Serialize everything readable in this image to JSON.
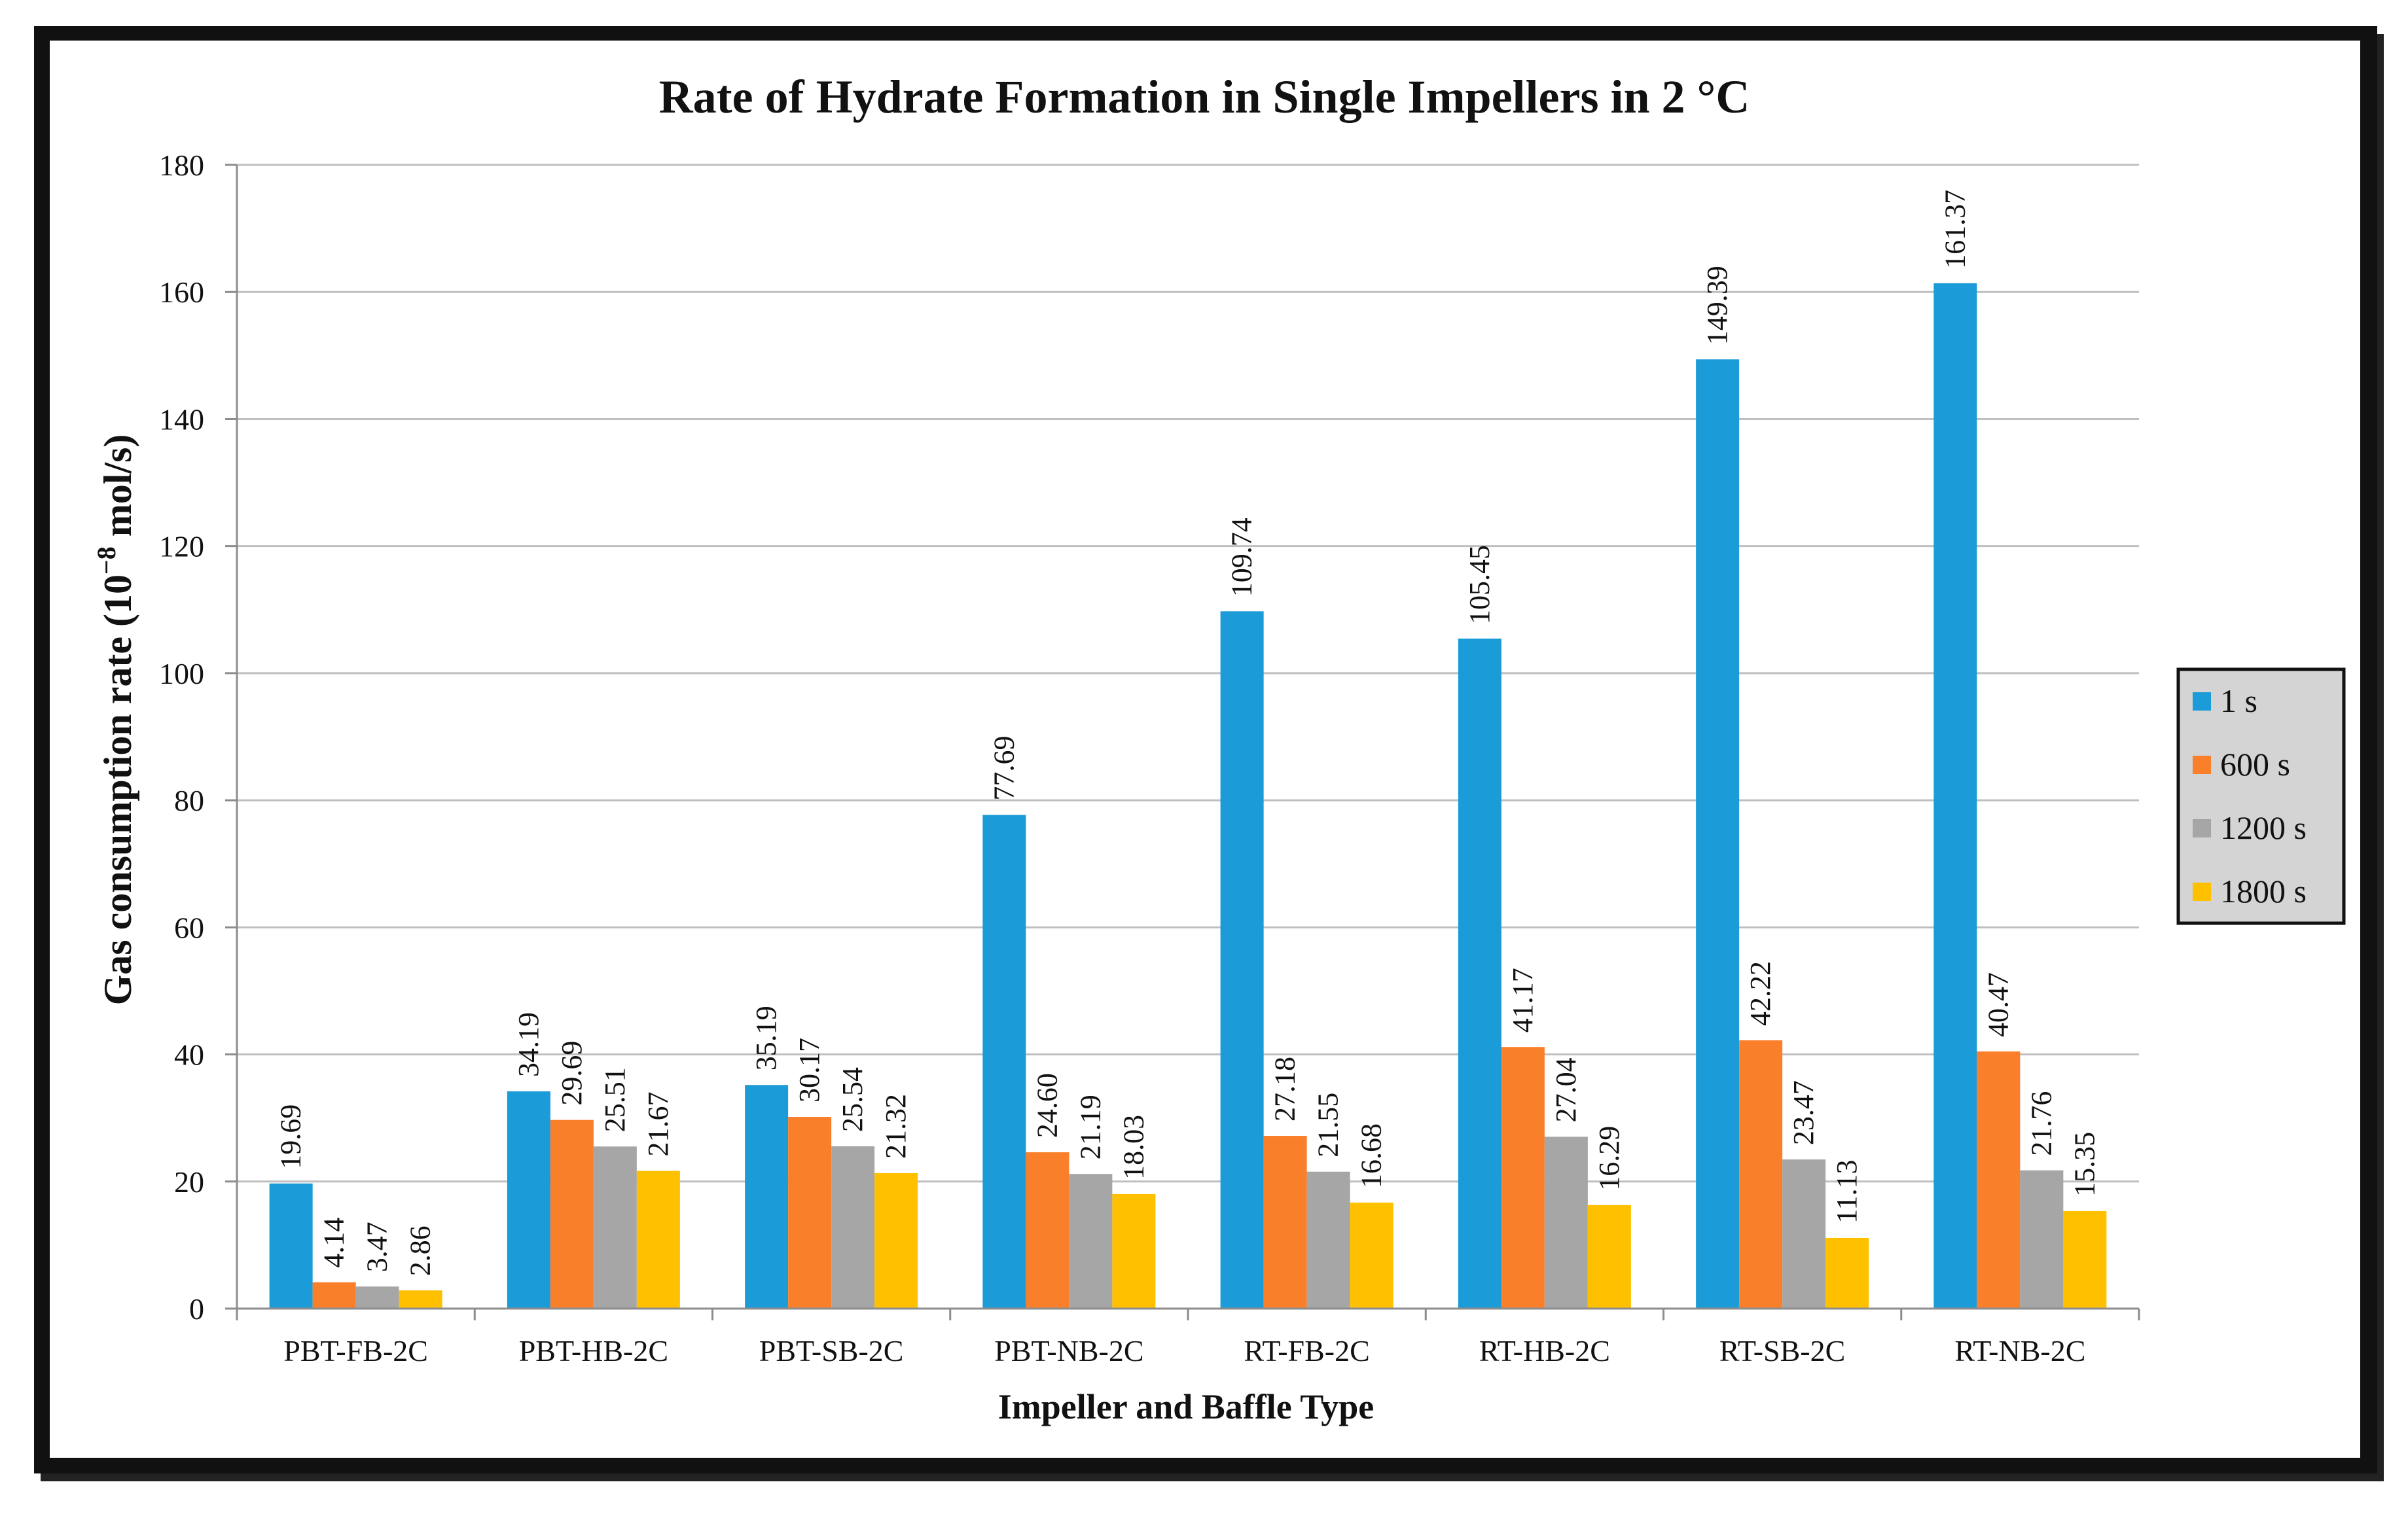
{
  "chart_data": {
    "type": "bar",
    "title": "Rate of Hydrate Formation in Single Impellers in 2 °C",
    "xlabel": "Impeller and Baffle Type",
    "ylabel": {
      "prefix": "Gas consumption rate (10",
      "exponent": "−8",
      "suffix": " mol/s)"
    },
    "ylim": [
      0,
      180
    ],
    "yticks": [
      0,
      20,
      40,
      60,
      80,
      100,
      120,
      140,
      160,
      180
    ],
    "grid": true,
    "legend_position": "right",
    "categories": [
      "PBT-FB-2C",
      "PBT-HB-2C",
      "PBT-SB-2C",
      "PBT-NB-2C",
      "RT-FB-2C",
      "RT-HB-2C",
      "RT-SB-2C",
      "RT-NB-2C"
    ],
    "series": [
      {
        "name": "1 s",
        "color": "#1B9BD7",
        "values": [
          19.69,
          34.19,
          35.19,
          77.69,
          109.74,
          105.45,
          149.39,
          161.37
        ],
        "labels": [
          "19.69",
          "34.19",
          "35.19",
          "77.69",
          "109.74",
          "105.45",
          "149.39",
          "161.37"
        ]
      },
      {
        "name": "600 s",
        "color": "#FA7F2B",
        "values": [
          4.14,
          29.69,
          30.17,
          24.6,
          27.18,
          41.17,
          42.22,
          40.47
        ],
        "labels": [
          "4.14",
          "29.69",
          "30.17",
          "24.60",
          "27.18",
          "41.17",
          "42.22",
          "40.47"
        ]
      },
      {
        "name": "1200 s",
        "color": "#A6A6A6",
        "values": [
          3.47,
          25.51,
          25.54,
          21.19,
          21.55,
          27.04,
          23.47,
          21.76
        ],
        "labels": [
          "3.47",
          "25.51",
          "25.54",
          "21.19",
          "21.55",
          "27.04",
          "23.47",
          "21.76"
        ]
      },
      {
        "name": "1800 s",
        "color": "#FFC000",
        "values": [
          2.86,
          21.67,
          21.32,
          18.03,
          16.68,
          16.29,
          11.13,
          15.35
        ],
        "labels": [
          "2.86",
          "21.67",
          "21.32",
          "18.03",
          "16.68",
          "16.29",
          "11.13",
          "15.35"
        ]
      }
    ]
  }
}
